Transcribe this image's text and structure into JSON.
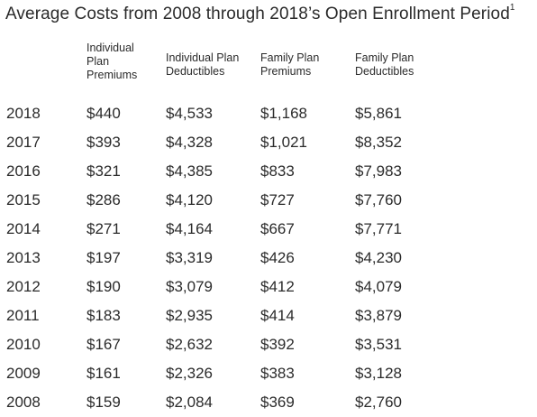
{
  "title": "Average Costs from 2008 through 2018’s Open Enrollment Period",
  "title_footnote": "1",
  "columns": {
    "individual_plan_premiums": [
      "Individual",
      "Plan",
      "Premiums"
    ],
    "individual_plan_deductibles": [
      "Individual Plan",
      "Deductibles"
    ],
    "family_plan_premiums": [
      "Family Plan",
      "Premiums"
    ],
    "family_plan_deductibles": [
      "Family Plan",
      "Deductibles"
    ]
  },
  "rows": [
    {
      "year": "2018",
      "ind_prem": "$440",
      "ind_ded": "$4,533",
      "fam_prem": "$1,168",
      "fam_ded": "$5,861"
    },
    {
      "year": "2017",
      "ind_prem": "$393",
      "ind_ded": "$4,328",
      "fam_prem": "$1,021",
      "fam_ded": "$8,352"
    },
    {
      "year": "2016",
      "ind_prem": "$321",
      "ind_ded": "$4,385",
      "fam_prem": "$833",
      "fam_ded": "$7,983"
    },
    {
      "year": "2015",
      "ind_prem": "$286",
      "ind_ded": "$4,120",
      "fam_prem": "$727",
      "fam_ded": "$7,760"
    },
    {
      "year": "2014",
      "ind_prem": "$271",
      "ind_ded": "$4,164",
      "fam_prem": "$667",
      "fam_ded": "$7,771"
    },
    {
      "year": "2013",
      "ind_prem": "$197",
      "ind_ded": "$3,319",
      "fam_prem": "$426",
      "fam_ded": "$4,230"
    },
    {
      "year": "2012",
      "ind_prem": "$190",
      "ind_ded": "$3,079",
      "fam_prem": "$412",
      "fam_ded": "$4,079"
    },
    {
      "year": "2011",
      "ind_prem": "$183",
      "ind_ded": "$2,935",
      "fam_prem": "$414",
      "fam_ded": "$3,879"
    },
    {
      "year": "2010",
      "ind_prem": "$167",
      "ind_ded": "$2,632",
      "fam_prem": "$392",
      "fam_ded": "$3,531"
    },
    {
      "year": "2009",
      "ind_prem": "$161",
      "ind_ded": "$2,326",
      "fam_prem": "$383",
      "fam_ded": "$3,128"
    },
    {
      "year": "2008",
      "ind_prem": "$159",
      "ind_ded": "$2,084",
      "fam_prem": "$369",
      "fam_ded": "$2,760"
    }
  ]
}
